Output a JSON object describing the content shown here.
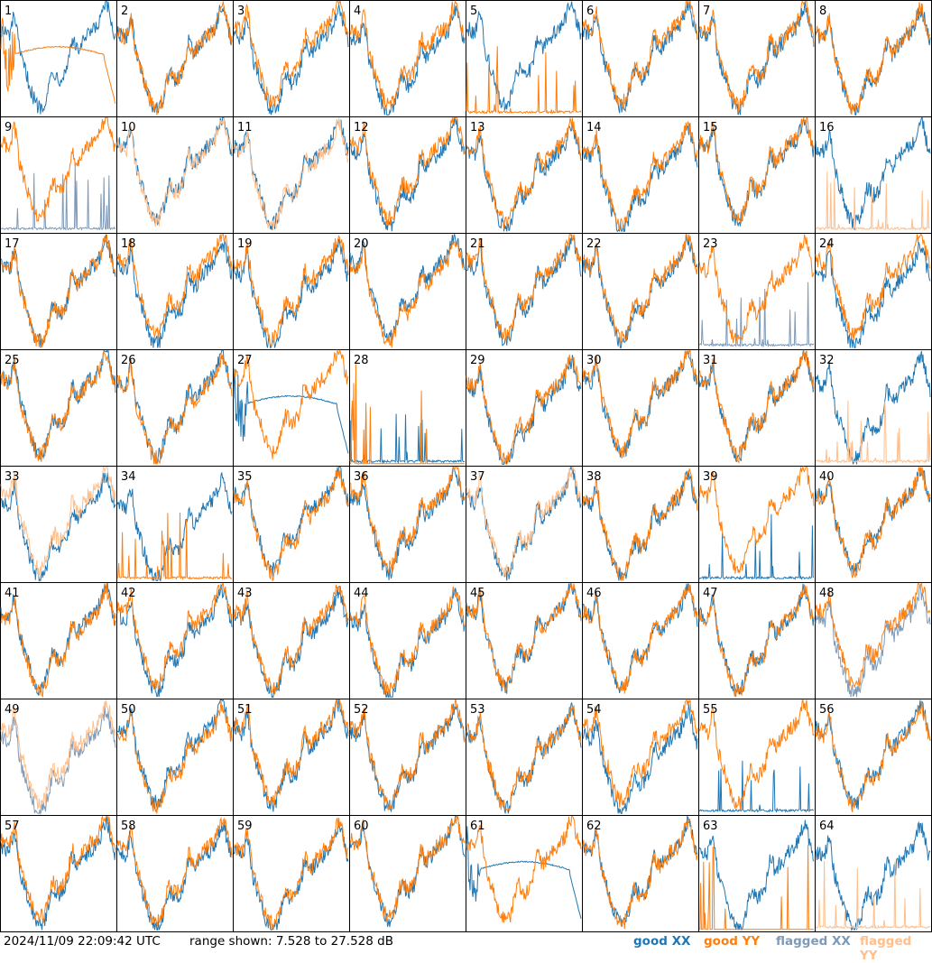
{
  "chart_data": {
    "type": "line",
    "grid": "8x8 small multiples, one panel per antenna",
    "ylim_db": [
      7.528,
      27.528
    ],
    "panel_labels": [
      "1",
      "2",
      "3",
      "4",
      "5",
      "6",
      "7",
      "8",
      "9",
      "10",
      "11",
      "12",
      "13",
      "14",
      "15",
      "16",
      "17",
      "18",
      "19",
      "20",
      "21",
      "22",
      "23",
      "24",
      "25",
      "26",
      "27",
      "28",
      "29",
      "30",
      "31",
      "32",
      "33",
      "34",
      "35",
      "36",
      "37",
      "38",
      "39",
      "40",
      "41",
      "42",
      "43",
      "44",
      "45",
      "46",
      "47",
      "48",
      "49",
      "50",
      "51",
      "52",
      "53",
      "54",
      "55",
      "56",
      "57",
      "58",
      "59",
      "60",
      "61",
      "62",
      "63",
      "64"
    ],
    "series_colors": {
      "good_xx": "#1f77b4",
      "good_yy": "#ff7f0e",
      "flagged_xx": "#7f9ab8",
      "flagged_yy": "#ffbf8c"
    },
    "panel_status": {
      "flagged_xx": [
        9,
        23,
        48,
        49
      ],
      "flagged_yy": [
        10,
        11,
        16,
        32,
        33,
        37,
        49,
        64
      ],
      "xx_spiky": [
        9,
        23,
        28,
        39,
        55
      ],
      "yy_spiky": [
        5,
        16,
        28,
        32,
        34,
        63,
        64
      ],
      "xx_smooth_hump": [
        27,
        61
      ],
      "yy_smooth_hump": [
        1
      ],
      "yy_collapsed": [
        28,
        63
      ]
    }
  },
  "footer": {
    "timestamp": "2024/11/09 22:09:42 UTC",
    "range": "range shown: 7.528 to 27.528 dB"
  },
  "legend": {
    "good_xx": "good XX",
    "good_yy": "good YY",
    "flagged_xx": "flagged XX",
    "flagged_yy": "flagged YY"
  }
}
